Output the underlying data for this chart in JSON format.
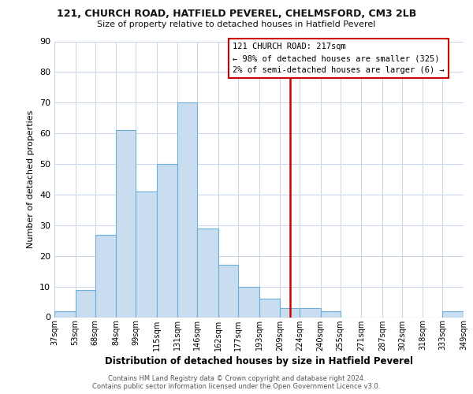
{
  "title1": "121, CHURCH ROAD, HATFIELD PEVEREL, CHELMSFORD, CM3 2LB",
  "title2": "Size of property relative to detached houses in Hatfield Peverel",
  "xlabel": "Distribution of detached houses by size in Hatfield Peverel",
  "ylabel": "Number of detached properties",
  "bin_edges": [
    37,
    53,
    68,
    84,
    99,
    115,
    131,
    146,
    162,
    177,
    193,
    209,
    224,
    240,
    255,
    271,
    287,
    302,
    318,
    333,
    349
  ],
  "bar_heights": [
    2,
    9,
    27,
    61,
    41,
    50,
    70,
    29,
    17,
    10,
    6,
    3,
    3,
    2,
    0,
    0,
    0,
    0,
    0,
    2
  ],
  "bar_color": "#c9ddf0",
  "bar_edge_color": "#6baed6",
  "bg_color": "#ffffff",
  "grid_color": "#c8d4e8",
  "red_line_x": 217,
  "annotation_title": "121 CHURCH ROAD: 217sqm",
  "annotation_line1": "← 98% of detached houses are smaller (325)",
  "annotation_line2": "2% of semi-detached houses are larger (6) →",
  "red_line_color": "#cc0000",
  "tick_labels": [
    "37sqm",
    "53sqm",
    "68sqm",
    "84sqm",
    "99sqm",
    "115sqm",
    "131sqm",
    "146sqm",
    "162sqm",
    "177sqm",
    "193sqm",
    "209sqm",
    "224sqm",
    "240sqm",
    "255sqm",
    "271sqm",
    "287sqm",
    "302sqm",
    "318sqm",
    "333sqm",
    "349sqm"
  ],
  "ylim": [
    0,
    90
  ],
  "yticks": [
    0,
    10,
    20,
    30,
    40,
    50,
    60,
    70,
    80,
    90
  ],
  "footnote1": "Contains HM Land Registry data © Crown copyright and database right 2024.",
  "footnote2": "Contains public sector information licensed under the Open Government Licence v3.0."
}
